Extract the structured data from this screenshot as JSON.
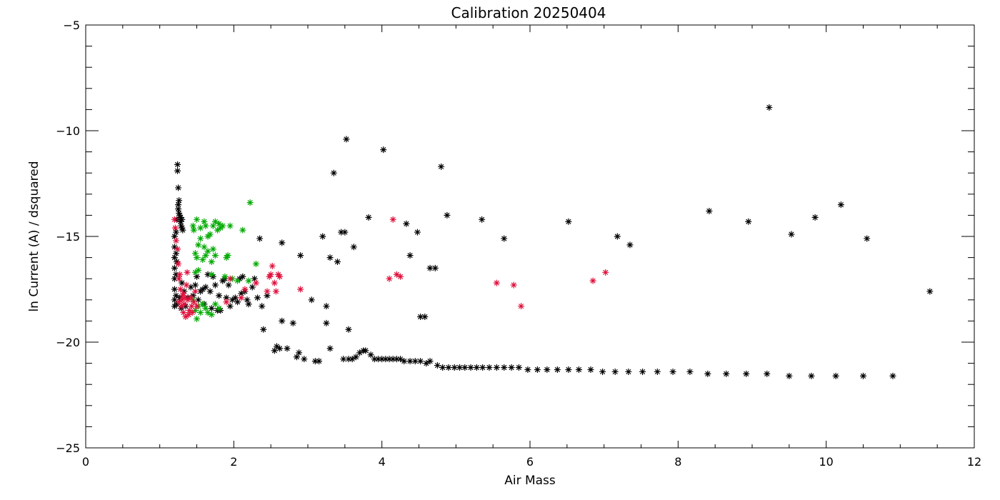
{
  "chart_data": {
    "type": "scatter",
    "title": "Calibration 20250404",
    "xlabel": "Air Mass",
    "ylabel": "ln Current (A) / dsquared",
    "xlim": [
      0,
      12
    ],
    "ylim": [
      -25,
      -5
    ],
    "x_ticks": [
      0,
      2,
      4,
      6,
      8,
      10,
      12
    ],
    "y_ticks": [
      -25,
      -20,
      -15,
      -10,
      -5
    ],
    "marker": "asterisk",
    "grid": false,
    "series": [
      {
        "color": "#000000",
        "points": [
          [
            1.2,
            -18.3
          ],
          [
            1.2,
            -18.0
          ],
          [
            1.2,
            -17.5
          ],
          [
            1.2,
            -17.0
          ],
          [
            1.2,
            -16.5
          ],
          [
            1.2,
            -16.0
          ],
          [
            1.2,
            -15.5
          ],
          [
            1.2,
            -15.0
          ],
          [
            1.22,
            -17.8
          ],
          [
            1.22,
            -16.8
          ],
          [
            1.22,
            -15.8
          ],
          [
            1.22,
            -14.8
          ],
          [
            1.23,
            -18.2
          ],
          [
            1.23,
            -16.2
          ],
          [
            1.23,
            -14.2
          ],
          [
            1.24,
            -11.6
          ],
          [
            1.24,
            -11.9
          ],
          [
            1.25,
            -12.7
          ],
          [
            1.25,
            -13.5
          ],
          [
            1.25,
            -13.7
          ],
          [
            1.26,
            -13.3
          ],
          [
            1.26,
            -13.9
          ],
          [
            1.27,
            -14.0
          ],
          [
            1.28,
            -14.1
          ],
          [
            1.28,
            -14.3
          ],
          [
            1.29,
            -14.5
          ],
          [
            1.3,
            -14.6
          ],
          [
            1.3,
            -14.2
          ],
          [
            1.31,
            -14.7
          ],
          [
            1.27,
            -17.9
          ],
          [
            1.29,
            -18.4
          ],
          [
            1.3,
            -17.2
          ],
          [
            1.33,
            -17.6
          ],
          [
            1.35,
            -18.3
          ],
          [
            1.38,
            -17.9
          ],
          [
            1.42,
            -17.4
          ],
          [
            1.45,
            -17.8
          ],
          [
            1.48,
            -17.3
          ],
          [
            1.5,
            -16.9
          ],
          [
            1.52,
            -18.0
          ],
          [
            1.55,
            -17.6
          ],
          [
            1.58,
            -17.5
          ],
          [
            1.6,
            -18.2
          ],
          [
            1.62,
            -17.4
          ],
          [
            1.65,
            -16.8
          ],
          [
            1.68,
            -17.6
          ],
          [
            1.7,
            -18.4
          ],
          [
            1.72,
            -16.9
          ],
          [
            1.75,
            -17.3
          ],
          [
            1.78,
            -18.5
          ],
          [
            1.8,
            -17.8
          ],
          [
            1.82,
            -18.5
          ],
          [
            1.85,
            -17.1
          ],
          [
            1.88,
            -17.0
          ],
          [
            1.9,
            -17.9
          ],
          [
            1.93,
            -17.3
          ],
          [
            1.95,
            -18.3
          ],
          [
            1.98,
            -18.0
          ],
          [
            2.02,
            -17.9
          ],
          [
            2.05,
            -18.1
          ],
          [
            2.08,
            -17.0
          ],
          [
            2.1,
            -17.7
          ],
          [
            2.12,
            -16.9
          ],
          [
            2.15,
            -17.6
          ],
          [
            2.18,
            -18.0
          ],
          [
            2.2,
            -18.2
          ],
          [
            2.25,
            -17.4
          ],
          [
            2.28,
            -17.0
          ],
          [
            2.32,
            -17.9
          ],
          [
            2.35,
            -15.1
          ],
          [
            2.38,
            -18.3
          ],
          [
            2.4,
            -19.4
          ],
          [
            2.45,
            -17.8
          ],
          [
            2.55,
            -20.4
          ],
          [
            2.58,
            -20.2
          ],
          [
            2.62,
            -20.3
          ],
          [
            2.65,
            -15.3
          ],
          [
            2.65,
            -19.0
          ],
          [
            2.72,
            -20.3
          ],
          [
            2.8,
            -19.1
          ],
          [
            2.85,
            -20.7
          ],
          [
            2.88,
            -20.5
          ],
          [
            2.9,
            -15.9
          ],
          [
            2.95,
            -20.8
          ],
          [
            3.05,
            -18.0
          ],
          [
            3.1,
            -20.9
          ],
          [
            3.15,
            -20.9
          ],
          [
            3.2,
            -15.0
          ],
          [
            3.25,
            -19.1
          ],
          [
            3.25,
            -18.3
          ],
          [
            3.3,
            -16.0
          ],
          [
            3.3,
            -20.3
          ],
          [
            3.35,
            -12.0
          ],
          [
            3.4,
            -16.2
          ],
          [
            3.45,
            -14.8
          ],
          [
            3.48,
            -20.8
          ],
          [
            3.5,
            -14.8
          ],
          [
            3.52,
            -10.4
          ],
          [
            3.55,
            -19.4
          ],
          [
            3.55,
            -20.8
          ],
          [
            3.6,
            -20.8
          ],
          [
            3.62,
            -15.5
          ],
          [
            3.65,
            -20.7
          ],
          [
            3.7,
            -20.5
          ],
          [
            3.75,
            -20.4
          ],
          [
            3.78,
            -20.4
          ],
          [
            3.82,
            -14.1
          ],
          [
            3.85,
            -20.6
          ],
          [
            3.9,
            -20.8
          ],
          [
            3.95,
            -20.8
          ],
          [
            4.0,
            -20.8
          ],
          [
            4.02,
            -10.9
          ],
          [
            4.05,
            -20.8
          ],
          [
            4.1,
            -20.8
          ],
          [
            4.15,
            -20.8
          ],
          [
            4.2,
            -20.8
          ],
          [
            4.25,
            -20.8
          ],
          [
            4.3,
            -20.9
          ],
          [
            4.33,
            -14.4
          ],
          [
            4.38,
            -20.9
          ],
          [
            4.38,
            -15.9
          ],
          [
            4.45,
            -20.9
          ],
          [
            4.48,
            -14.8
          ],
          [
            4.52,
            -20.9
          ],
          [
            4.52,
            -18.8
          ],
          [
            4.58,
            -18.8
          ],
          [
            4.6,
            -21.0
          ],
          [
            4.65,
            -20.9
          ],
          [
            4.65,
            -16.5
          ],
          [
            4.72,
            -16.5
          ],
          [
            4.75,
            -21.1
          ],
          [
            4.8,
            -11.7
          ],
          [
            4.82,
            -21.2
          ],
          [
            4.88,
            -14.0
          ],
          [
            4.9,
            -21.2
          ],
          [
            4.98,
            -21.2
          ],
          [
            5.05,
            -21.2
          ],
          [
            5.12,
            -21.2
          ],
          [
            5.2,
            -21.2
          ],
          [
            5.28,
            -21.2
          ],
          [
            5.35,
            -14.2
          ],
          [
            5.36,
            -21.2
          ],
          [
            5.45,
            -21.2
          ],
          [
            5.55,
            -21.2
          ],
          [
            5.65,
            -21.2
          ],
          [
            5.65,
            -15.1
          ],
          [
            5.75,
            -21.2
          ],
          [
            5.85,
            -21.2
          ],
          [
            5.97,
            -21.3
          ],
          [
            6.1,
            -21.3
          ],
          [
            6.23,
            -21.3
          ],
          [
            6.37,
            -21.3
          ],
          [
            6.52,
            -14.3
          ],
          [
            6.52,
            -21.3
          ],
          [
            6.66,
            -21.3
          ],
          [
            6.82,
            -21.3
          ],
          [
            6.98,
            -21.4
          ],
          [
            7.15,
            -21.4
          ],
          [
            7.18,
            -15.0
          ],
          [
            7.33,
            -21.4
          ],
          [
            7.35,
            -15.4
          ],
          [
            7.52,
            -21.4
          ],
          [
            7.72,
            -21.4
          ],
          [
            7.93,
            -21.4
          ],
          [
            8.16,
            -21.4
          ],
          [
            8.4,
            -21.5
          ],
          [
            8.42,
            -13.8
          ],
          [
            8.65,
            -21.5
          ],
          [
            8.92,
            -21.5
          ],
          [
            8.95,
            -14.3
          ],
          [
            9.2,
            -21.5
          ],
          [
            9.23,
            -8.9
          ],
          [
            9.5,
            -21.6
          ],
          [
            9.53,
            -14.9
          ],
          [
            9.8,
            -21.6
          ],
          [
            9.85,
            -14.1
          ],
          [
            10.13,
            -21.6
          ],
          [
            10.2,
            -13.5
          ],
          [
            10.5,
            -21.6
          ],
          [
            10.55,
            -15.1
          ],
          [
            10.9,
            -21.6
          ],
          [
            11.4,
            -17.6
          ]
        ]
      },
      {
        "color": "#00aa00",
        "points": [
          [
            1.45,
            -14.5
          ],
          [
            1.46,
            -14.7
          ],
          [
            1.48,
            -15.8
          ],
          [
            1.5,
            -14.2
          ],
          [
            1.5,
            -16.0
          ],
          [
            1.52,
            -15.4
          ],
          [
            1.52,
            -16.6
          ],
          [
            1.55,
            -14.6
          ],
          [
            1.55,
            -15.1
          ],
          [
            1.58,
            -16.1
          ],
          [
            1.6,
            -14.3
          ],
          [
            1.6,
            -15.5
          ],
          [
            1.62,
            -14.5
          ],
          [
            1.62,
            -15.9
          ],
          [
            1.65,
            -15.0
          ],
          [
            1.65,
            -15.7
          ],
          [
            1.68,
            -14.9
          ],
          [
            1.7,
            -16.2
          ],
          [
            1.7,
            -16.8
          ],
          [
            1.72,
            -15.6
          ],
          [
            1.72,
            -14.5
          ],
          [
            1.75,
            -14.3
          ],
          [
            1.75,
            -15.9
          ],
          [
            1.78,
            -14.7
          ],
          [
            1.8,
            -14.4
          ],
          [
            1.82,
            -14.6
          ],
          [
            1.85,
            -14.5
          ],
          [
            1.88,
            -16.9
          ],
          [
            1.9,
            -16.0
          ],
          [
            1.92,
            -15.9
          ],
          [
            1.95,
            -14.5
          ],
          [
            1.98,
            -17.0
          ],
          [
            2.05,
            -17.1
          ],
          [
            2.12,
            -14.7
          ],
          [
            2.22,
            -13.4
          ],
          [
            2.3,
            -16.3
          ],
          [
            2.2,
            -17.1
          ],
          [
            1.48,
            -18.5
          ],
          [
            1.5,
            -18.9
          ],
          [
            1.52,
            -18.3
          ],
          [
            1.55,
            -18.6
          ],
          [
            1.58,
            -18.2
          ],
          [
            1.62,
            -18.4
          ],
          [
            1.65,
            -18.6
          ],
          [
            1.7,
            -18.7
          ],
          [
            1.75,
            -18.2
          ],
          [
            1.8,
            -18.4
          ],
          [
            1.45,
            -18.0
          ],
          [
            1.48,
            -16.7
          ]
        ]
      },
      {
        "color": "#e0103c",
        "points": [
          [
            1.2,
            -14.2
          ],
          [
            1.21,
            -14.6
          ],
          [
            1.22,
            -15.2
          ],
          [
            1.24,
            -15.6
          ],
          [
            1.25,
            -16.3
          ],
          [
            1.26,
            -17.0
          ],
          [
            1.27,
            -16.8
          ],
          [
            1.28,
            -17.5
          ],
          [
            1.29,
            -18.3
          ],
          [
            1.3,
            -18.0
          ],
          [
            1.31,
            -17.8
          ],
          [
            1.32,
            -18.6
          ],
          [
            1.33,
            -18.2
          ],
          [
            1.35,
            -18.8
          ],
          [
            1.36,
            -17.3
          ],
          [
            1.37,
            -16.7
          ],
          [
            1.38,
            -18.0
          ],
          [
            1.4,
            -18.5
          ],
          [
            1.42,
            -17.9
          ],
          [
            1.44,
            -18.6
          ],
          [
            1.46,
            -18.1
          ],
          [
            1.48,
            -17.6
          ],
          [
            1.5,
            -18.3
          ],
          [
            1.34,
            -17.9
          ],
          [
            1.39,
            -18.7
          ],
          [
            1.43,
            -18.3
          ],
          [
            1.26,
            -18.1
          ],
          [
            1.32,
            -17.7
          ],
          [
            1.9,
            -18.1
          ],
          [
            1.95,
            -17.0
          ],
          [
            2.1,
            -17.9
          ],
          [
            2.15,
            -17.5
          ],
          [
            2.3,
            -17.2
          ],
          [
            2.45,
            -17.6
          ],
          [
            2.48,
            -16.9
          ],
          [
            2.5,
            -16.8
          ],
          [
            2.52,
            -16.4
          ],
          [
            2.55,
            -17.2
          ],
          [
            2.57,
            -17.6
          ],
          [
            2.6,
            -16.8
          ],
          [
            2.62,
            -16.9
          ],
          [
            2.9,
            -17.5
          ],
          [
            4.1,
            -17.0
          ],
          [
            4.15,
            -14.2
          ],
          [
            4.2,
            -16.8
          ],
          [
            4.25,
            -16.9
          ],
          [
            5.55,
            -17.2
          ],
          [
            5.78,
            -17.3
          ],
          [
            5.88,
            -18.3
          ],
          [
            6.85,
            -17.1
          ],
          [
            7.02,
            -16.7
          ]
        ]
      }
    ]
  }
}
